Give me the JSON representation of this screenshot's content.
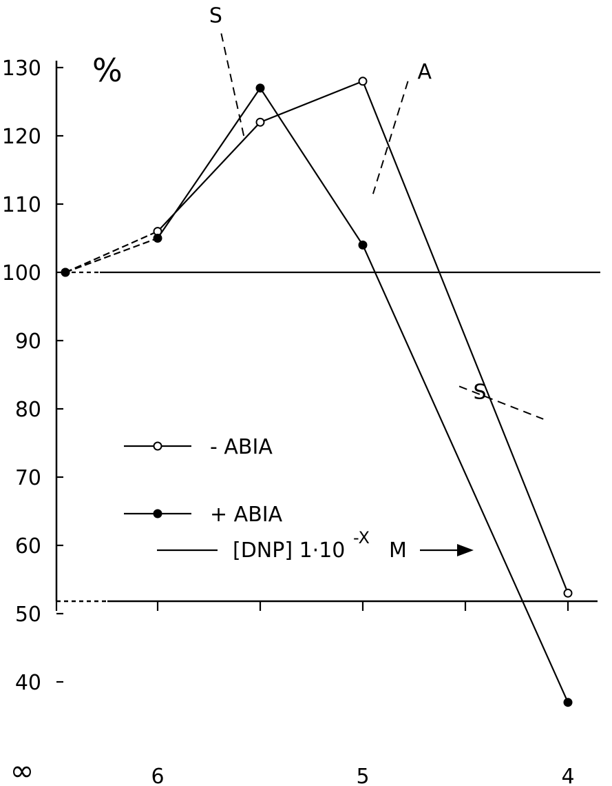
{
  "chart_data": {
    "type": "line",
    "title": "",
    "ylabel": "%",
    "xlabel": "[DNP] 1·10^-X M",
    "xlabel_parts": {
      "prefix": "[DNP]  1·10",
      "exponent": "-X",
      "unit": "M"
    },
    "ylim": [
      32,
      134
    ],
    "xlim": [
      7.03,
      3.64
    ],
    "x_axis_inverted": true,
    "grid": false,
    "legend_placement": "center-left",
    "y_ticks": [
      40,
      50,
      60,
      70,
      80,
      90,
      100,
      110,
      120,
      130
    ],
    "y_tick_labels": [
      "40",
      "50",
      "60",
      "70",
      "80",
      "90",
      "100",
      "110",
      "120",
      "130"
    ],
    "x_ticks": [
      6,
      5.5,
      5,
      4.5,
      4
    ],
    "x_tick_labels": [
      {
        "x": 6,
        "label": "6"
      },
      {
        "x": 5,
        "label": "5"
      },
      {
        "x": 4,
        "label": "4"
      }
    ],
    "x_infinity_label": "∞",
    "reference_line": 100,
    "series": [
      {
        "name": "- ABIA",
        "marker": "open-circle",
        "points": [
          {
            "x": "∞",
            "y": 100
          },
          {
            "x": 6,
            "y": 106
          },
          {
            "x": 5.5,
            "y": 122
          },
          {
            "x": 5,
            "y": 128
          },
          {
            "x": 4,
            "y": 53
          }
        ]
      },
      {
        "name": "+ ABIA",
        "marker": "filled-circle",
        "points": [
          {
            "x": "∞",
            "y": 100
          },
          {
            "x": 6,
            "y": 105
          },
          {
            "x": 5.5,
            "y": 127
          },
          {
            "x": 5,
            "y": 104
          },
          {
            "x": 4,
            "y": 37
          }
        ]
      }
    ],
    "annotations": [
      {
        "label": "S",
        "style": "dashed",
        "from": {
          "x": 5.69,
          "y": 135
        },
        "to": {
          "x": 5.58,
          "y": 120
        }
      },
      {
        "label": "A",
        "style": "dashed",
        "from": {
          "x": 4.78,
          "y": 128
        },
        "to": {
          "x": 4.95,
          "y": 111.5
        }
      },
      {
        "label": "S",
        "style": "dashed",
        "from": {
          "x": 4.53,
          "y": 83.3
        },
        "to": {
          "x": 4.12,
          "y": 78.5
        }
      }
    ]
  }
}
